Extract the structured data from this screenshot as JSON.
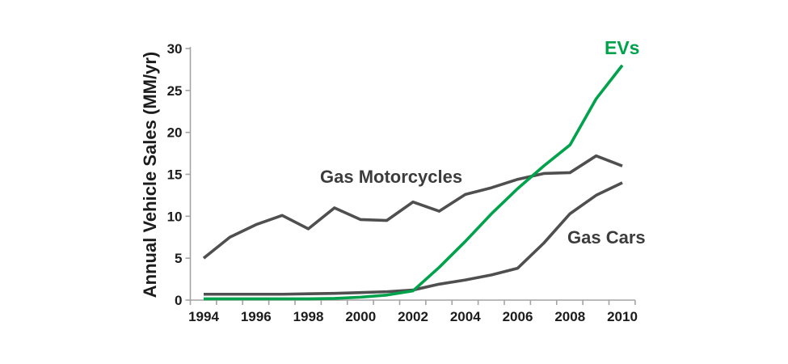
{
  "chart_data": {
    "type": "line",
    "title": "",
    "xlabel": "",
    "ylabel": "Annual Vehicle Sales (MM/yr)",
    "x": [
      1994,
      1995,
      1996,
      1997,
      1998,
      1999,
      2000,
      2001,
      2002,
      2003,
      2004,
      2005,
      2006,
      2007,
      2008,
      2009,
      2010
    ],
    "x_tick_labels": [
      "1994",
      "1996",
      "1998",
      "2000",
      "2002",
      "2004",
      "2006",
      "2008",
      "2010"
    ],
    "y_ticks": [
      0,
      5,
      10,
      15,
      20,
      25,
      30
    ],
    "ylim": [
      0,
      30
    ],
    "grid": false,
    "legend_position": "inline-annotations",
    "series": [
      {
        "name": "Gas Cars",
        "color": "#4f4f4f",
        "values": [
          0.7,
          0.7,
          0.7,
          0.7,
          0.75,
          0.8,
          0.9,
          1.0,
          1.2,
          1.9,
          2.4,
          3.0,
          3.8,
          6.8,
          10.3,
          12.5,
          14.0
        ]
      },
      {
        "name": "Gas Motorcycles",
        "color": "#4f4f4f",
        "values": [
          5.0,
          7.5,
          9.0,
          10.1,
          8.5,
          11.0,
          9.6,
          9.5,
          11.7,
          10.6,
          12.6,
          13.4,
          14.4,
          15.1,
          15.2,
          17.2,
          16.0
        ]
      },
      {
        "name": "EVs",
        "color": "#00a24c",
        "values": [
          0.15,
          0.15,
          0.15,
          0.15,
          0.15,
          0.2,
          0.35,
          0.6,
          1.1,
          3.9,
          7.0,
          10.3,
          13.3,
          16.0,
          18.5,
          24.0,
          28.0
        ]
      }
    ],
    "annotations": [
      {
        "id": "gas_motorcycles",
        "text": "Gas Motorcycles",
        "color": "#3c3c3c"
      },
      {
        "id": "gas_cars",
        "text": "Gas Cars",
        "color": "#3c3c3c"
      },
      {
        "id": "evs",
        "text": "EVs",
        "color": "#00a24c"
      }
    ]
  },
  "colors": {
    "background": "#ffffff",
    "axis": "#a3a3a3",
    "tick_text": "#1c1c1c"
  }
}
